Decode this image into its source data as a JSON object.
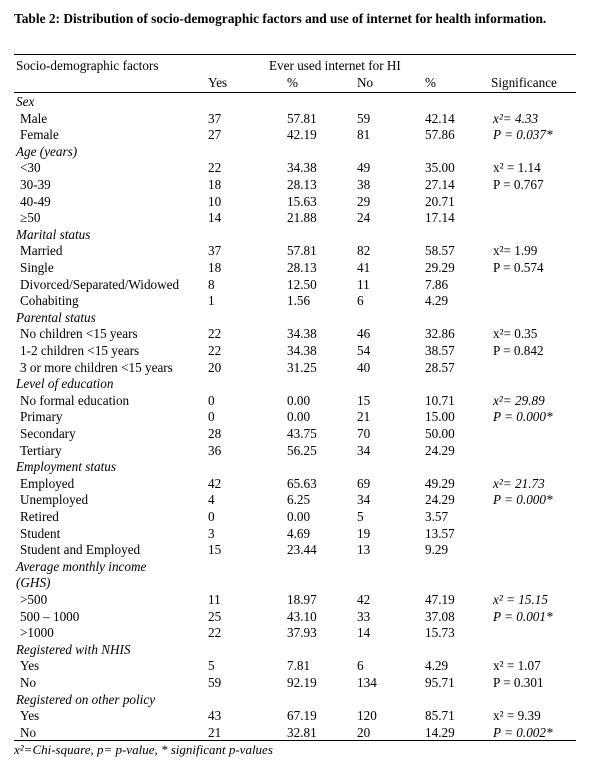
{
  "title": "Table 2: Distribution of socio-demographic factors and use of internet for health information.",
  "header": {
    "factor": "Socio-demographic factors",
    "group": "Ever used internet for HI",
    "yes": "Yes",
    "pct1": "%",
    "no": "No",
    "pct2": "%",
    "significance": "Significance"
  },
  "rows": [
    {
      "kind": "cat",
      "label": "Sex"
    },
    {
      "kind": "data",
      "label": "Male",
      "yes": "37",
      "pct_yes": "57.81",
      "no": "59",
      "pct_no": "42.14",
      "sig": "x²= 4.33",
      "sig_italic": true
    },
    {
      "kind": "data",
      "label": "Female",
      "yes": "27",
      "pct_yes": "42.19",
      "no": "81",
      "pct_no": "57.86",
      "sig": "P = 0.037*",
      "sig_italic": true
    },
    {
      "kind": "cat",
      "label": "Age (years)"
    },
    {
      "kind": "data",
      "label": "<30",
      "yes": "22",
      "pct_yes": "34.38",
      "no": "49",
      "pct_no": "35.00",
      "sig": "x² = 1.14",
      "sig_italic": false
    },
    {
      "kind": "data",
      "label": "30-39",
      "yes": "18",
      "pct_yes": "28.13",
      "no": "38",
      "pct_no": "27.14",
      "sig": "P = 0.767",
      "sig_italic": false
    },
    {
      "kind": "data",
      "label": "40-49",
      "yes": "10",
      "pct_yes": "15.63",
      "no": "29",
      "pct_no": "20.71",
      "sig": "",
      "sig_italic": false
    },
    {
      "kind": "data",
      "label": "≥50",
      "yes": "14",
      "pct_yes": "21.88",
      "no": "24",
      "pct_no": "17.14",
      "sig": "",
      "sig_italic": false
    },
    {
      "kind": "cat",
      "label": "Marital status"
    },
    {
      "kind": "data",
      "label": "Married",
      "yes": "37",
      "pct_yes": "57.81",
      "no": "82",
      "pct_no": "58.57",
      "sig": "x²= 1.99",
      "sig_italic": false
    },
    {
      "kind": "data",
      "label": "Single",
      "yes": "18",
      "pct_yes": "28.13",
      "no": "41",
      "pct_no": "29.29",
      "sig": "P = 0.574",
      "sig_italic": false
    },
    {
      "kind": "data",
      "label": "Divorced/Separated/Widowed",
      "yes": "8",
      "pct_yes": "12.50",
      "no": "11",
      "pct_no": "7.86",
      "sig": "",
      "sig_italic": false
    },
    {
      "kind": "data",
      "label": "Cohabiting",
      "yes": "1",
      "pct_yes": "1.56",
      "no": "6",
      "pct_no": "4.29",
      "sig": "",
      "sig_italic": false
    },
    {
      "kind": "cat",
      "label": "Parental status"
    },
    {
      "kind": "data",
      "label": "No children <15 years",
      "yes": "22",
      "pct_yes": "34.38",
      "no": "46",
      "pct_no": "32.86",
      "sig": "x²= 0.35",
      "sig_italic": false
    },
    {
      "kind": "data",
      "label": "1-2 children <15 years",
      "yes": "22",
      "pct_yes": "34.38",
      "no": "54",
      "pct_no": "38.57",
      "sig": "P = 0.842",
      "sig_italic": false
    },
    {
      "kind": "data",
      "label": "3 or more children <15 years",
      "yes": "20",
      "pct_yes": "31.25",
      "no": "40",
      "pct_no": "28.57",
      "sig": "",
      "sig_italic": false
    },
    {
      "kind": "cat",
      "label": "Level of education"
    },
    {
      "kind": "data",
      "label": "No formal education",
      "yes": "0",
      "pct_yes": "0.00",
      "no": "15",
      "pct_no": "10.71",
      "sig": "x²= 29.89",
      "sig_italic": true
    },
    {
      "kind": "data",
      "label": "Primary",
      "yes": "0",
      "pct_yes": "0.00",
      "no": "21",
      "pct_no": "15.00",
      "sig": "P = 0.000*",
      "sig_italic": true
    },
    {
      "kind": "data",
      "label": "Secondary",
      "yes": "28",
      "pct_yes": "43.75",
      "no": "70",
      "pct_no": "50.00",
      "sig": "",
      "sig_italic": false
    },
    {
      "kind": "data",
      "label": "Tertiary",
      "yes": "36",
      "pct_yes": "56.25",
      "no": "34",
      "pct_no": "24.29",
      "sig": "",
      "sig_italic": false
    },
    {
      "kind": "cat",
      "label": "Employment status"
    },
    {
      "kind": "data",
      "label": "Employed",
      "yes": "42",
      "pct_yes": "65.63",
      "no": "69",
      "pct_no": "49.29",
      "sig": "x²= 21.73",
      "sig_italic": true
    },
    {
      "kind": "data",
      "label": "Unemployed",
      "yes": "4",
      "pct_yes": "6.25",
      "no": "34",
      "pct_no": "24.29",
      "sig": "P = 0.000*",
      "sig_italic": true
    },
    {
      "kind": "data",
      "label": "Retired",
      "yes": "0",
      "pct_yes": "0.00",
      "no": "5",
      "pct_no": "3.57",
      "sig": "",
      "sig_italic": false
    },
    {
      "kind": "data",
      "label": "Student",
      "yes": "3",
      "pct_yes": "4.69",
      "no": "19",
      "pct_no": "13.57",
      "sig": "",
      "sig_italic": false
    },
    {
      "kind": "data",
      "label": "Student and Employed",
      "yes": "15",
      "pct_yes": "23.44",
      "no": "13",
      "pct_no": "9.29",
      "sig": "",
      "sig_italic": false
    },
    {
      "kind": "cat",
      "label": "Average monthly income"
    },
    {
      "kind": "cat",
      "label": "(GHS)"
    },
    {
      "kind": "data",
      "label": ">500",
      "yes": "11",
      "pct_yes": "18.97",
      "no": "42",
      "pct_no": "47.19",
      "sig": "x² = 15.15",
      "sig_italic": true
    },
    {
      "kind": "data",
      "label": "500 – 1000",
      "yes": "25",
      "pct_yes": "43.10",
      "no": "33",
      "pct_no": "37.08",
      "sig": "P = 0.001*",
      "sig_italic": true
    },
    {
      "kind": "data",
      "label": ">1000",
      "yes": "22",
      "pct_yes": "37.93",
      "no": "14",
      "pct_no": "15.73",
      "sig": "",
      "sig_italic": false
    },
    {
      "kind": "cat",
      "label": "Registered with NHIS"
    },
    {
      "kind": "data",
      "label": "Yes",
      "yes": "5",
      "pct_yes": "7.81",
      "no": "6",
      "pct_no": "4.29",
      "sig": "x² = 1.07",
      "sig_italic": false
    },
    {
      "kind": "data",
      "label": "No",
      "yes": "59",
      "pct_yes": "92.19",
      "no": "134",
      "pct_no": "95.71",
      "sig": "P = 0.301",
      "sig_italic": false
    },
    {
      "kind": "cat",
      "label": "Registered on other policy"
    },
    {
      "kind": "data",
      "label": "Yes",
      "yes": "43",
      "pct_yes": "67.19",
      "no": "120",
      "pct_no": "85.71",
      "sig": "x² = 9.39",
      "sig_italic": false
    },
    {
      "kind": "data",
      "label": "No",
      "yes": "21",
      "pct_yes": "32.81",
      "no": "20",
      "pct_no": "14.29",
      "sig": "P = 0.002*",
      "sig_italic": true
    }
  ],
  "footnote": "x²=Chi-square, p= p-value, * significant p-values"
}
